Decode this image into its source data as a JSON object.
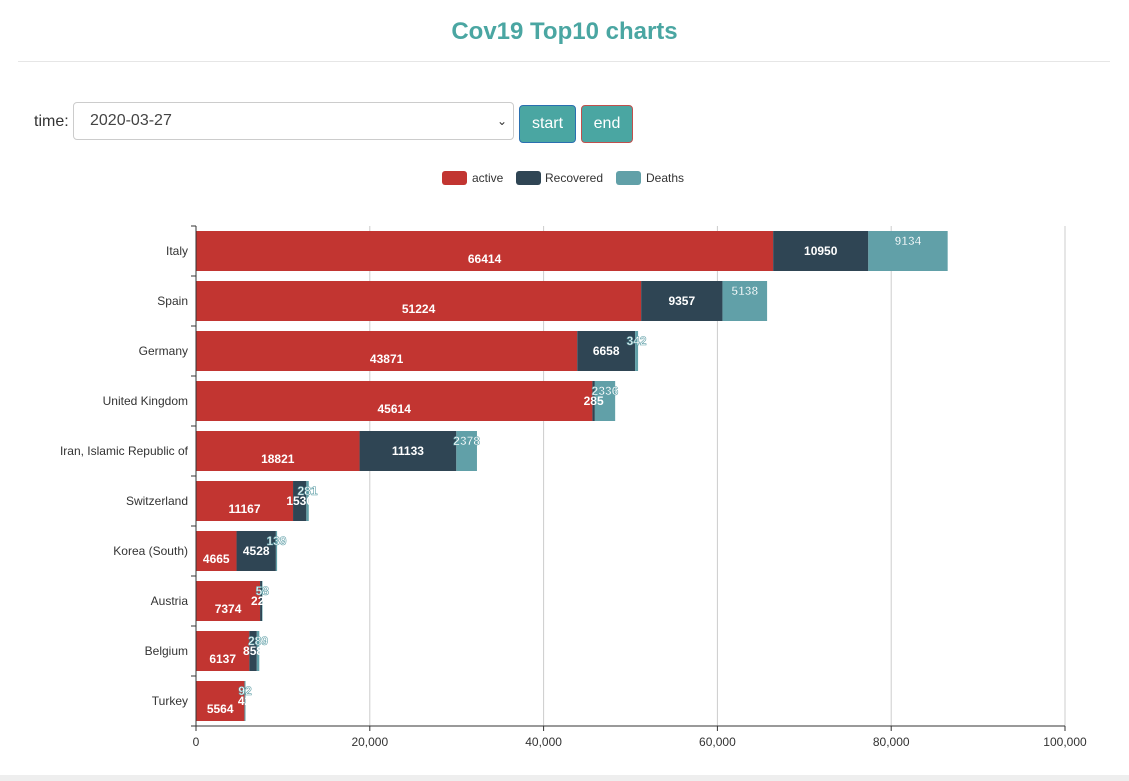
{
  "page": {
    "title": "Cov19 Top10 charts"
  },
  "controls": {
    "time_label": "time:",
    "time_value": "2020-03-27",
    "start_label": "start",
    "end_label": "end"
  },
  "chart_data": {
    "type": "bar",
    "orientation": "horizontal",
    "stacked": true,
    "categories": [
      "Italy",
      "Spain",
      "Germany",
      "United Kingdom",
      "Iran, Islamic Republic of",
      "Switzerland",
      "Korea (South)",
      "Austria",
      "Belgium",
      "Turkey"
    ],
    "series": [
      {
        "name": "active",
        "color": "#c23531",
        "values": [
          66414,
          51224,
          43871,
          45614,
          18821,
          11167,
          4665,
          7374,
          6137,
          5564
        ]
      },
      {
        "name": "Recovered",
        "color": "#2f4554",
        "values": [
          10950,
          9357,
          6658,
          285,
          11133,
          1530,
          4528,
          225,
          858,
          42
        ]
      },
      {
        "name": "Deaths",
        "color": "#61a0a8",
        "values": [
          9134,
          5138,
          342,
          2336,
          2378,
          281,
          139,
          58,
          289,
          92
        ]
      }
    ],
    "xlim": [
      0,
      100000
    ],
    "xticks": [
      "0",
      "20,000",
      "40,000",
      "60,000",
      "80,000",
      "100,000"
    ],
    "legend_position": "top-center",
    "grid": "vertical"
  }
}
